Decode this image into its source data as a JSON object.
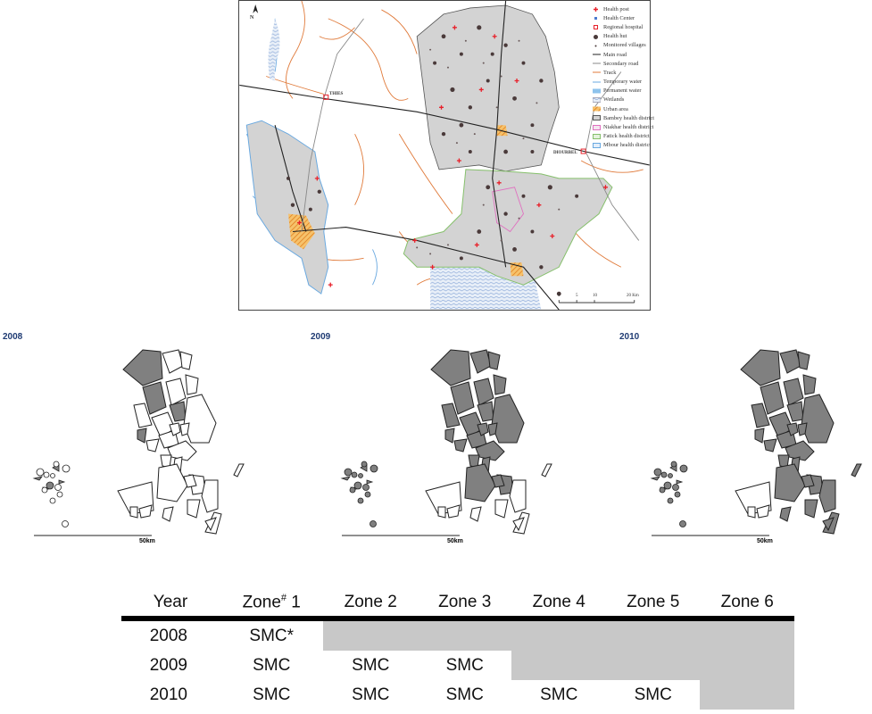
{
  "main_map": {
    "north_label": "N",
    "places": [
      "THIES",
      "DIOURBEL"
    ],
    "scale_labels": [
      "0",
      "5",
      "10",
      "20 Km"
    ],
    "legend": [
      {
        "label": "Health post",
        "icon": "red-cross-icon"
      },
      {
        "label": "Health Center",
        "icon": "blue-square-icon"
      },
      {
        "label": "Regional hospital",
        "icon": "red-square-icon"
      },
      {
        "label": "Health hut",
        "icon": "dark-dot-icon"
      },
      {
        "label": "Monitored villages",
        "icon": "small-dot-icon"
      },
      {
        "label": "Main road",
        "icon": "black-line-icon"
      },
      {
        "label": "Secondary road",
        "icon": "gray-line-icon"
      },
      {
        "label": "Track",
        "icon": "orange-line-icon"
      },
      {
        "label": "Temporary water",
        "icon": "blue-line-icon"
      },
      {
        "label": "Permanent water",
        "icon": "blue-fill-icon"
      },
      {
        "label": "Wetlands",
        "icon": "wetland-icon"
      },
      {
        "label": "Urban area",
        "icon": "hatched-orange-icon"
      },
      {
        "label": "Bambey health district",
        "icon": "gray-box-icon"
      },
      {
        "label": "Niakhar health district",
        "icon": "pink-box-icon"
      },
      {
        "label": "Fatick health district",
        "icon": "green-box-icon"
      },
      {
        "label": "Mbour health district",
        "icon": "lightblue-box-icon"
      }
    ],
    "colors": {
      "district_fill": "#d3d3d3",
      "health_post": "#e8202a",
      "health_hut": "#4a3a3a",
      "track": "#e07a3a",
      "water": "#6aa9e0"
    }
  },
  "years": [
    "2008",
    "2009",
    "2010"
  ],
  "mini_scale_label": "50km",
  "treated_fill": "#808080",
  "table": {
    "headers": {
      "year": "Year",
      "zone1": "Zone",
      "zone1_sup": "#",
      "zone1_num": " 1",
      "zone2": "Zone 2",
      "zone3": "Zone 3",
      "zone4": "Zone 4",
      "zone5": "Zone 5",
      "zone6": "Zone 6"
    },
    "rows": [
      {
        "year": "2008",
        "cells": [
          "SMC*",
          "",
          "",
          "",
          "",
          ""
        ]
      },
      {
        "year": "2009",
        "cells": [
          "SMC",
          "SMC",
          "SMC",
          "",
          "",
          ""
        ]
      },
      {
        "year": "2010",
        "cells": [
          "SMC",
          "SMC",
          "SMC",
          "SMC",
          "SMC",
          ""
        ]
      }
    ]
  }
}
